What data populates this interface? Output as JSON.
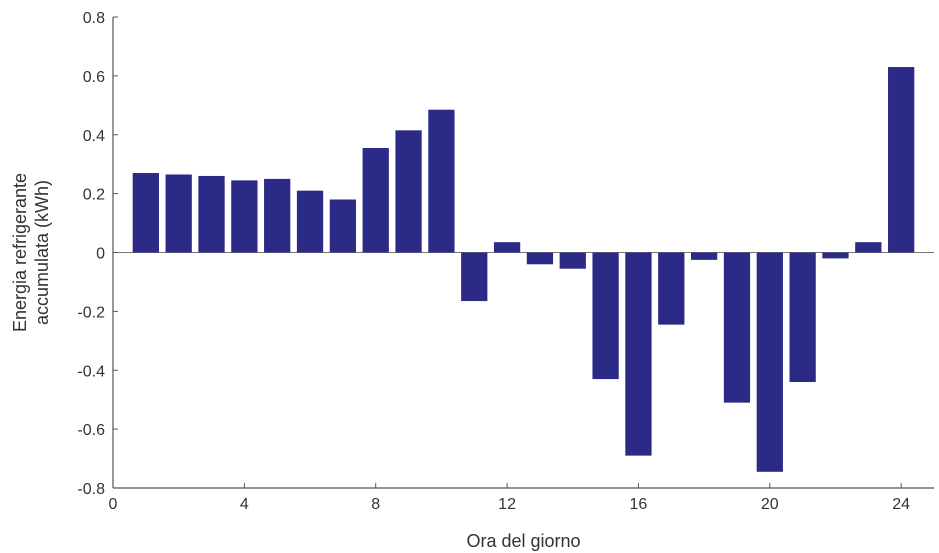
{
  "chart_data": {
    "type": "bar",
    "title": "",
    "xlabel": "Ora del giorno",
    "ylabel_lines": [
      "Energia refrigerante",
      "accumulata (kWh)"
    ],
    "xlim": [
      0,
      25
    ],
    "ylim": [
      -0.8,
      0.8
    ],
    "xticks": [
      0,
      4,
      8,
      12,
      16,
      20,
      24
    ],
    "yticks": [
      0.8,
      0.6,
      0.4,
      0.2,
      0,
      -0.2,
      -0.4,
      -0.6,
      -0.8
    ],
    "ytick_labels": [
      "0.8",
      "0.6",
      "0.4",
      "0.2",
      "0",
      "-0.2",
      "-0.4",
      "-0.6",
      "-0.8"
    ],
    "x": [
      1,
      2,
      3,
      4,
      5,
      6,
      7,
      8,
      9,
      10,
      11,
      12,
      13,
      14,
      15,
      16,
      17,
      18,
      19,
      20,
      21,
      22,
      23,
      24
    ],
    "values": [
      0.27,
      0.265,
      0.26,
      0.245,
      0.25,
      0.21,
      0.18,
      0.355,
      0.415,
      0.485,
      -0.165,
      0.035,
      -0.04,
      -0.055,
      -0.43,
      -0.69,
      -0.245,
      -0.025,
      -0.51,
      -0.745,
      -0.44,
      -0.02,
      0.035,
      0.63
    ],
    "bar_color": "#2b2a86",
    "grid": false,
    "legend": "none"
  }
}
